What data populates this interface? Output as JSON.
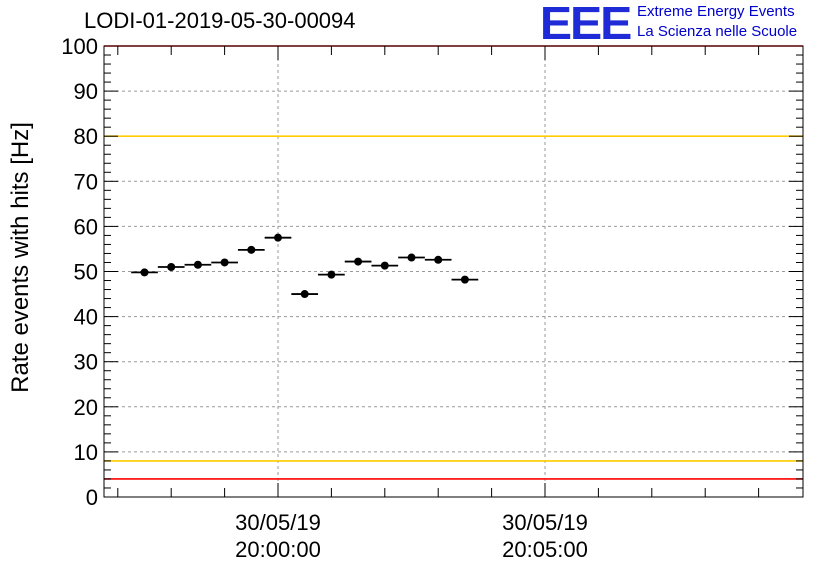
{
  "header": {
    "title": "LODI-01-2019-05-30-00094",
    "logo_text": "EEE",
    "logo_line1": "Extreme Energy Events",
    "logo_line2": "La Scienza nelle Scuole"
  },
  "chart_data": {
    "type": "scatter",
    "title": "LODI-01-2019-05-30-00094",
    "xlabel": "",
    "ylabel": "Rate events with hits [Hz]",
    "ylim": [
      0,
      100
    ],
    "yticks": [
      0,
      10,
      20,
      30,
      40,
      50,
      60,
      70,
      80,
      90,
      100
    ],
    "xticks": [
      {
        "date": "30/05/19",
        "time": "20:00:00"
      },
      {
        "date": "30/05/19",
        "time": "20:05:00"
      }
    ],
    "grid": true,
    "reference_lines": [
      {
        "y": 100,
        "color": "#ff0000"
      },
      {
        "y": 80,
        "color": "#ffcc00"
      },
      {
        "y": 8,
        "color": "#ffcc00"
      },
      {
        "y": 4,
        "color": "#ff0000"
      }
    ],
    "series": [
      {
        "color": "#000000",
        "points": [
          {
            "x": "19:57:30",
            "y": 49.8
          },
          {
            "x": "19:58:00",
            "y": 51.0
          },
          {
            "x": "19:58:30",
            "y": 51.5
          },
          {
            "x": "19:59:00",
            "y": 52.0
          },
          {
            "x": "19:59:30",
            "y": 54.8
          },
          {
            "x": "20:00:00",
            "y": 57.5
          },
          {
            "x": "20:00:30",
            "y": 45.0
          },
          {
            "x": "20:01:00",
            "y": 49.3
          },
          {
            "x": "20:01:30",
            "y": 52.2
          },
          {
            "x": "20:02:00",
            "y": 51.3
          },
          {
            "x": "20:02:30",
            "y": 53.1
          },
          {
            "x": "20:03:00",
            "y": 52.6
          },
          {
            "x": "20:03:30",
            "y": 48.2
          }
        ]
      }
    ]
  }
}
